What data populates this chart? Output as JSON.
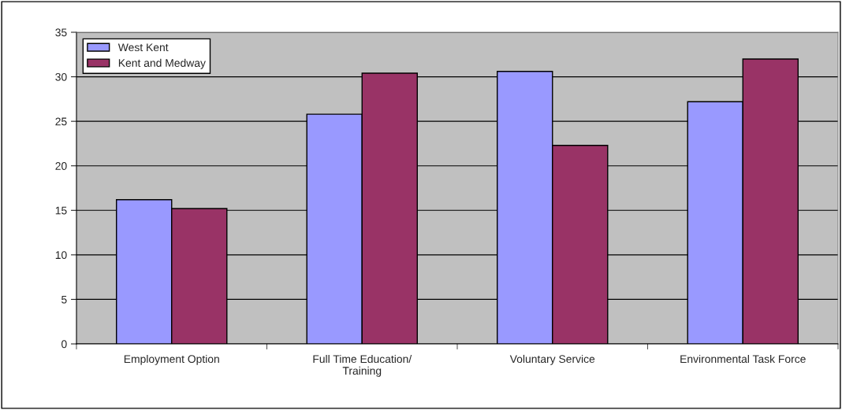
{
  "chart_data": {
    "type": "bar",
    "categories": [
      "Employment Option",
      "Full Time Education/\nTraining",
      "Voluntary Service",
      "Environmental Task Force"
    ],
    "series": [
      {
        "name": "West Kent",
        "color": "#9999ff",
        "values": [
          16.2,
          25.8,
          30.6,
          27.2
        ]
      },
      {
        "name": "Kent and Medway",
        "color": "#993366",
        "values": [
          15.2,
          30.4,
          22.3,
          32.0
        ]
      }
    ],
    "ylim": [
      0,
      35
    ],
    "yticks": [
      0,
      5,
      10,
      15,
      20,
      25,
      30,
      35
    ],
    "grid": "y",
    "legend": "top left"
  }
}
